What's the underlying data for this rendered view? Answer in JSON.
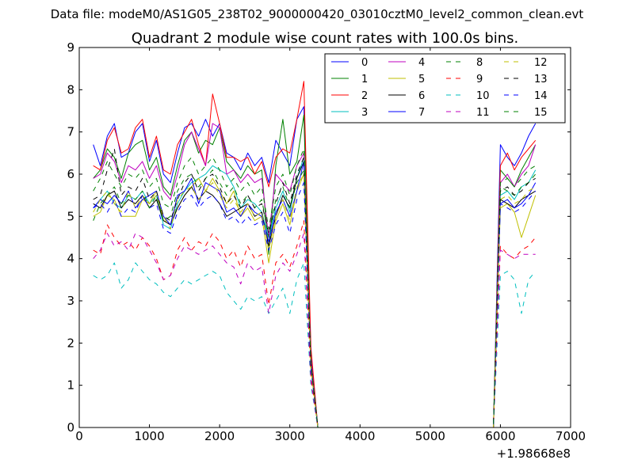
{
  "figure": {
    "suptitle": "Data file: modeM0/AS1G05_238T02_9000000420_03010cztM0_level2_common_clean.evt"
  },
  "chart_data": {
    "type": "line",
    "title": "Quadrant 2 module wise count rates with 100.0s bins.",
    "xlabel": "",
    "ylabel": "",
    "xlim": [
      0,
      7000
    ],
    "ylim": [
      0,
      9
    ],
    "x_offset_label": "+1.98668e8",
    "x_ticks": [
      0,
      1000,
      2000,
      3000,
      4000,
      5000,
      6000,
      7000
    ],
    "x_tick_labels": [
      "0",
      "1000",
      "2000",
      "3000",
      "4000",
      "5000",
      "6000",
      "7000"
    ],
    "y_ticks": [
      0,
      1,
      2,
      3,
      4,
      5,
      6,
      7,
      8,
      9
    ],
    "y_tick_labels": [
      "0",
      "1",
      "2",
      "3",
      "4",
      "5",
      "6",
      "7",
      "8",
      "9"
    ],
    "grid": false,
    "legend_position": "top-right",
    "legend_columns": 4,
    "x": [
      200,
      300,
      400,
      500,
      600,
      700,
      800,
      900,
      1000,
      1100,
      1200,
      1300,
      1400,
      1500,
      1600,
      1700,
      1800,
      1900,
      2000,
      2100,
      2200,
      2300,
      2400,
      2500,
      2600,
      2700,
      2800,
      2900,
      3000,
      3100,
      3200,
      3300,
      3400,
      5900,
      6000,
      6100,
      6200,
      6300,
      6400,
      6500
    ],
    "series": [
      {
        "name": "0",
        "color": "#0000ff",
        "dash": "solid",
        "values": [
          6.7,
          6.2,
          6.9,
          7.2,
          6.4,
          6.5,
          7.0,
          7.2,
          6.3,
          6.8,
          6.0,
          5.8,
          6.5,
          7.1,
          7.2,
          6.9,
          7.3,
          6.9,
          7.2,
          6.5,
          6.4,
          6.1,
          6.5,
          6.2,
          6.4,
          5.8,
          6.8,
          6.5,
          6.2,
          7.3,
          7.6,
          1.8,
          0.0,
          0.0,
          6.7,
          6.4,
          6.2,
          6.5,
          6.9,
          7.2
        ]
      },
      {
        "name": "1",
        "color": "#008000",
        "dash": "solid",
        "values": [
          5.9,
          6.1,
          6.6,
          6.4,
          5.9,
          6.5,
          6.7,
          6.8,
          6.1,
          6.4,
          5.7,
          5.5,
          6.2,
          6.8,
          7.0,
          6.5,
          6.8,
          6.7,
          7.1,
          6.3,
          6.1,
          5.9,
          6.2,
          6.0,
          6.1,
          4.1,
          6.2,
          7.3,
          6.0,
          6.3,
          7.4,
          1.6,
          0.0,
          0.0,
          6.1,
          5.9,
          5.7,
          6.1,
          6.4,
          6.7
        ]
      },
      {
        "name": "2",
        "color": "#ff0000",
        "dash": "solid",
        "values": [
          6.2,
          6.1,
          6.8,
          7.1,
          6.5,
          6.6,
          7.1,
          7.3,
          6.4,
          6.9,
          6.1,
          6.0,
          6.7,
          7.0,
          7.3,
          6.7,
          6.2,
          7.9,
          7.2,
          6.4,
          6.4,
          6.3,
          6.4,
          6.0,
          6.3,
          5.7,
          6.4,
          6.6,
          6.5,
          7.3,
          8.2,
          1.9,
          0.0,
          0.0,
          6.2,
          6.5,
          6.1,
          6.4,
          6.6,
          6.8
        ]
      },
      {
        "name": "3",
        "color": "#00bfbf",
        "dash": "solid",
        "values": [
          5.2,
          5.4,
          5.6,
          5.3,
          5.2,
          5.5,
          5.4,
          5.6,
          5.3,
          5.5,
          4.8,
          4.7,
          5.3,
          5.6,
          5.8,
          5.9,
          6.0,
          6.2,
          6.1,
          6.0,
          5.7,
          5.2,
          5.4,
          5.3,
          5.1,
          4.5,
          5.2,
          5.6,
          5.1,
          5.9,
          6.4,
          1.5,
          0.0,
          0.0,
          5.5,
          5.6,
          5.4,
          5.7,
          5.8,
          6.1
        ]
      },
      {
        "name": "4",
        "color": "#bf00bf",
        "dash": "solid",
        "values": [
          5.9,
          6.0,
          6.5,
          6.3,
          5.8,
          6.2,
          6.1,
          6.3,
          5.9,
          6.2,
          5.6,
          5.4,
          6.0,
          6.7,
          7.0,
          6.6,
          6.2,
          7.2,
          7.1,
          6.0,
          6.1,
          5.8,
          6.0,
          5.8,
          5.9,
          4.5,
          6.0,
          5.8,
          5.6,
          6.2,
          6.5,
          1.6,
          0.0,
          0.0,
          5.8,
          6.0,
          5.7,
          6.0,
          6.2,
          6.7
        ]
      },
      {
        "name": "5",
        "color": "#bfbf00",
        "dash": "solid",
        "values": [
          5.0,
          5.1,
          5.5,
          5.4,
          5.0,
          5.0,
          5.0,
          5.4,
          5.3,
          5.6,
          4.9,
          4.8,
          5.2,
          5.5,
          5.7,
          5.9,
          5.6,
          5.9,
          5.6,
          5.3,
          5.6,
          5.0,
          5.2,
          4.9,
          5.0,
          3.9,
          4.9,
          5.3,
          4.8,
          5.6,
          6.0,
          1.4,
          0.0,
          0.0,
          5.2,
          5.3,
          5.1,
          4.5,
          5.0,
          5.5
        ]
      },
      {
        "name": "6",
        "color": "#000000",
        "dash": "solid",
        "values": [
          5.3,
          5.2,
          5.5,
          5.6,
          5.2,
          5.4,
          5.3,
          5.5,
          5.2,
          5.4,
          4.9,
          4.8,
          5.2,
          5.5,
          5.7,
          5.4,
          5.6,
          5.5,
          5.3,
          5.0,
          5.1,
          5.2,
          5.3,
          5.0,
          5.1,
          4.3,
          5.0,
          5.5,
          5.2,
          5.9,
          6.3,
          1.5,
          0.0,
          0.0,
          5.4,
          5.3,
          5.2,
          5.4,
          5.5,
          5.6
        ]
      },
      {
        "name": "7",
        "color": "#0000ff",
        "dash": "solid",
        "values": [
          5.2,
          5.4,
          5.3,
          5.5,
          5.3,
          5.6,
          5.2,
          5.4,
          5.5,
          5.6,
          5.0,
          4.8,
          5.5,
          5.6,
          5.9,
          5.3,
          5.8,
          5.7,
          5.6,
          5.1,
          5.2,
          5.0,
          5.3,
          5.1,
          5.0,
          4.4,
          5.1,
          5.4,
          5.0,
          5.6,
          6.3,
          1.5,
          0.0,
          0.0,
          5.3,
          5.4,
          5.2,
          5.3,
          5.5,
          5.8
        ]
      },
      {
        "name": "8",
        "color": "#008000",
        "dash": "dashed",
        "values": [
          4.9,
          5.3,
          5.5,
          5.7,
          5.3,
          5.5,
          5.4,
          5.6,
          5.2,
          5.5,
          4.9,
          5.0,
          5.6,
          5.9,
          6.0,
          5.7,
          5.9,
          6.1,
          5.8,
          5.5,
          5.7,
          5.3,
          5.5,
          5.2,
          5.4,
          4.5,
          5.4,
          5.7,
          5.2,
          5.8,
          6.1,
          1.5,
          0.0,
          0.0,
          5.7,
          5.6,
          5.5,
          5.7,
          5.8,
          6.0
        ]
      },
      {
        "name": "9",
        "color": "#ff0000",
        "dash": "dashed",
        "values": [
          4.2,
          4.1,
          4.8,
          4.5,
          4.3,
          4.4,
          4.2,
          4.5,
          4.3,
          4.0,
          3.5,
          3.6,
          4.2,
          4.5,
          4.2,
          4.4,
          4.3,
          4.6,
          4.4,
          4.0,
          4.2,
          3.8,
          4.3,
          4.0,
          4.1,
          2.9,
          3.9,
          4.1,
          3.8,
          4.3,
          4.9,
          1.2,
          0.0,
          0.0,
          4.3,
          4.1,
          4.0,
          4.2,
          4.3,
          4.5
        ]
      },
      {
        "name": "10",
        "color": "#00bfbf",
        "dash": "dashed",
        "values": [
          3.6,
          3.5,
          3.6,
          3.9,
          3.3,
          3.5,
          3.9,
          3.7,
          3.5,
          3.4,
          3.2,
          3.1,
          3.3,
          3.5,
          3.4,
          3.5,
          3.6,
          3.7,
          3.6,
          3.2,
          3.0,
          2.8,
          3.1,
          3.0,
          3.1,
          2.7,
          3.0,
          3.3,
          2.7,
          3.5,
          3.9,
          1.0,
          0.0,
          0.0,
          3.6,
          3.7,
          3.5,
          2.7,
          3.5,
          3.7
        ]
      },
      {
        "name": "11",
        "color": "#bf00bf",
        "dash": "dashed",
        "values": [
          4.0,
          4.2,
          4.6,
          4.3,
          4.4,
          4.2,
          4.6,
          4.5,
          4.2,
          3.9,
          3.5,
          3.6,
          4.0,
          4.3,
          4.2,
          4.1,
          4.2,
          4.3,
          4.1,
          3.9,
          3.8,
          3.4,
          3.9,
          3.7,
          3.8,
          2.7,
          3.6,
          3.9,
          3.7,
          4.1,
          4.6,
          1.1,
          0.0,
          0.0,
          4.2,
          4.1,
          4.0,
          4.1,
          4.1,
          4.1
        ]
      },
      {
        "name": "12",
        "color": "#bfbf00",
        "dash": "dashed",
        "values": [
          5.1,
          5.4,
          5.6,
          5.3,
          5.1,
          5.6,
          5.2,
          5.5,
          5.3,
          5.5,
          5.0,
          4.7,
          5.4,
          5.6,
          5.7,
          5.4,
          5.6,
          5.8,
          5.5,
          5.2,
          5.4,
          5.1,
          5.3,
          5.0,
          5.1,
          4.2,
          5.0,
          5.4,
          4.9,
          5.7,
          6.0,
          1.4,
          0.0,
          0.0,
          5.4,
          5.5,
          5.3,
          5.4,
          5.6,
          5.7
        ]
      },
      {
        "name": "13",
        "color": "#000000",
        "dash": "dashed",
        "values": [
          5.4,
          5.5,
          6.1,
          6.6,
          5.5,
          5.7,
          5.6,
          5.9,
          5.4,
          5.6,
          5.0,
          4.9,
          5.4,
          5.8,
          6.0,
          5.6,
          5.9,
          6.0,
          5.7,
          5.3,
          5.5,
          5.2,
          5.5,
          5.2,
          5.3,
          4.6,
          5.3,
          5.8,
          5.3,
          6.0,
          6.4,
          1.5,
          0.0,
          0.0,
          5.6,
          5.7,
          5.5,
          5.6,
          5.8,
          5.9
        ]
      },
      {
        "name": "14",
        "color": "#0000ff",
        "dash": "dashed",
        "values": [
          5.2,
          5.3,
          5.1,
          5.4,
          5.0,
          5.2,
          5.1,
          5.5,
          5.2,
          5.3,
          4.7,
          4.6,
          5.1,
          5.4,
          5.5,
          5.2,
          5.4,
          5.5,
          5.3,
          4.9,
          5.0,
          4.8,
          5.0,
          4.8,
          4.9,
          4.2,
          4.8,
          5.1,
          4.6,
          5.4,
          5.8,
          1.4,
          0.0,
          0.0,
          5.3,
          5.2,
          5.1,
          5.2,
          5.4,
          5.6
        ]
      },
      {
        "name": "15",
        "color": "#008000",
        "dash": "dashed",
        "values": [
          5.6,
          5.9,
          6.3,
          6.0,
          5.7,
          6.0,
          5.9,
          6.1,
          5.7,
          5.9,
          5.3,
          5.2,
          5.8,
          6.2,
          6.4,
          6.0,
          6.2,
          6.4,
          6.1,
          5.7,
          5.9,
          5.6,
          5.8,
          5.5,
          5.7,
          4.7,
          5.7,
          6.0,
          5.5,
          6.2,
          6.6,
          1.5,
          0.0,
          0.0,
          5.8,
          5.9,
          5.7,
          5.9,
          6.1,
          6.2
        ]
      }
    ]
  }
}
